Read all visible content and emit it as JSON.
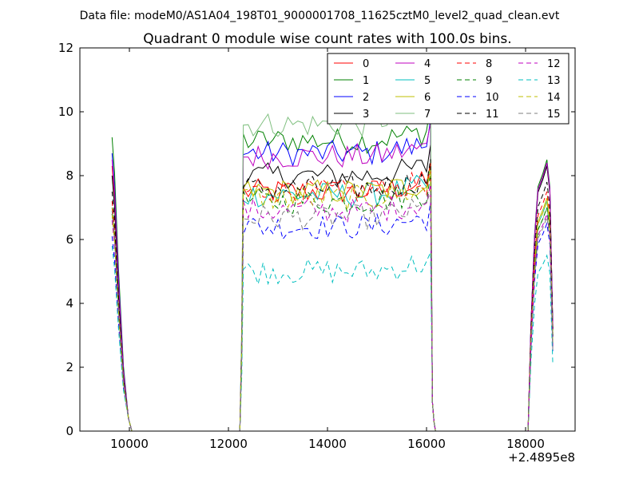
{
  "chart_data": {
    "type": "line",
    "suptitle": "Data file: modeM0/AS1A04_198T01_9000001708_11625cztM0_level2_quad_clean.evt",
    "title": "Quadrant 0 module wise count rates with 100.0s bins.",
    "xlabel": "",
    "ylabel": "",
    "x_offset_label": "+2.4895e8",
    "xlim": [
      9000,
      19000
    ],
    "ylim": [
      0,
      12
    ],
    "xticks": [
      10000,
      12000,
      14000,
      16000,
      18000
    ],
    "xtick_labels": [
      "10000",
      "12000",
      "14000",
      "16000",
      "18000"
    ],
    "yticks": [
      0,
      2,
      4,
      6,
      8,
      10,
      12
    ],
    "ytick_labels": [
      "0",
      "2",
      "4",
      "6",
      "8",
      "10",
      "12"
    ],
    "legend_position": "top-right",
    "legend_columns": 4,
    "segments": [
      {
        "x_start": 9650,
        "x_end": 10050,
        "shape": "decay"
      },
      {
        "x_start": 12250,
        "x_end": 16150,
        "shape": "plateau"
      },
      {
        "x_start": 18050,
        "x_end": 18550,
        "shape": "rise"
      }
    ],
    "series": [
      {
        "name": "0",
        "color": "#ff0000",
        "dash": "solid",
        "level": 7.5,
        "start": 8.3,
        "end": 8.4
      },
      {
        "name": "1",
        "color": "#008000",
        "dash": "solid",
        "level": 9.1,
        "start": 9.2,
        "end": 8.5
      },
      {
        "name": "2",
        "color": "#0000ff",
        "dash": "solid",
        "level": 8.7,
        "start": 8.7,
        "end": 8.4
      },
      {
        "name": "3",
        "color": "#000000",
        "dash": "solid",
        "level": 8.0,
        "start": 8.0,
        "end": 8.3
      },
      {
        "name": "4",
        "color": "#bf00bf",
        "dash": "solid",
        "level": 8.6,
        "start": 8.5,
        "end": 8.4
      },
      {
        "name": "5",
        "color": "#00bfbf",
        "dash": "solid",
        "level": 7.4,
        "start": 7.0,
        "end": 7.2
      },
      {
        "name": "6",
        "color": "#bfbf00",
        "dash": "solid",
        "level": 7.5,
        "start": 7.0,
        "end": 7.3
      },
      {
        "name": "7",
        "color": "#7fbf7f",
        "dash": "solid",
        "level": 9.6,
        "start": 6.8,
        "end": 7.0
      },
      {
        "name": "8",
        "color": "#ff0000",
        "dash": "dashed",
        "level": 7.5,
        "start": 7.2,
        "end": 7.5
      },
      {
        "name": "9",
        "color": "#008000",
        "dash": "dashed",
        "level": 7.2,
        "start": 6.8,
        "end": 7.0
      },
      {
        "name": "10",
        "color": "#0000ff",
        "dash": "dashed",
        "level": 6.4,
        "start": 6.1,
        "end": 6.5
      },
      {
        "name": "11",
        "color": "#000000",
        "dash": "dashed",
        "level": 7.6,
        "start": 7.5,
        "end": 7.8
      },
      {
        "name": "12",
        "color": "#bf00bf",
        "dash": "dashed",
        "level": 6.9,
        "start": 6.6,
        "end": 6.8
      },
      {
        "name": "13",
        "color": "#00bfbf",
        "dash": "dashed",
        "level": 5.0,
        "start": 5.8,
        "end": 5.5
      },
      {
        "name": "14",
        "color": "#bfbf00",
        "dash": "dashed",
        "level": 7.3,
        "start": 6.8,
        "end": 7.2
      },
      {
        "name": "15",
        "color": "#7f7f7f",
        "dash": "dashed",
        "level": 6.7,
        "start": 6.9,
        "end": 6.7
      }
    ]
  }
}
